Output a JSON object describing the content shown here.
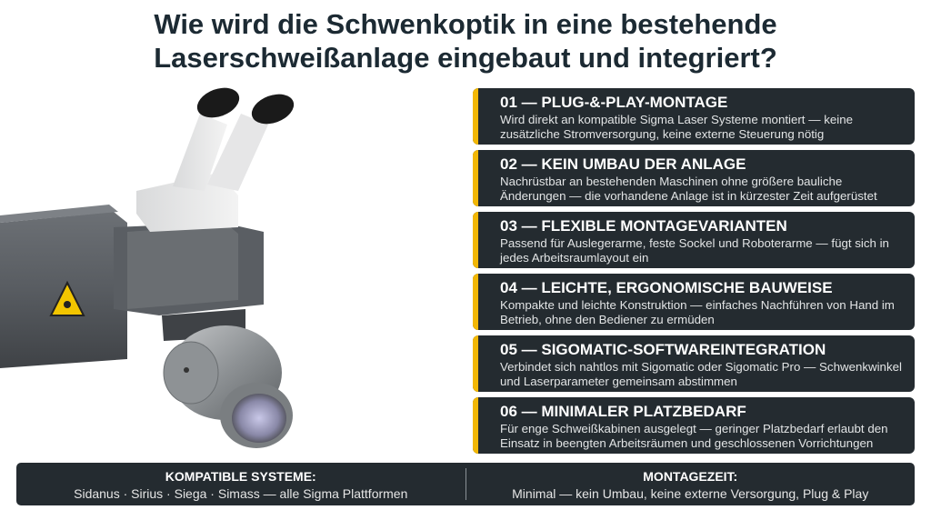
{
  "header": {
    "title_lines": [
      "Wie wird die Schwenkoptik in eine bestehende",
      "Laserschweißanlage eingebaut und integriert?"
    ]
  },
  "items": [
    {
      "heading": "01 — PLUG-&-PLAY-MONTAGE",
      "body": "Wird direkt an kompatible Sigma Laser Systeme montiert — keine zusätzliche Stromversorgung, keine externe Steuerung nötig"
    },
    {
      "heading": "02 — KEIN UMBAU DER ANLAGE",
      "body": "Nachrüstbar an bestehenden Maschinen ohne größere bauliche Änderungen — die vorhandene Anlage ist in kürzester Zeit aufgerüstet"
    },
    {
      "heading": "03 — FLEXIBLE MONTAGEVARIANTEN",
      "body": "Passend für Auslegerarme, feste Sockel und Roboterarme — fügt sich in jedes Arbeitsraumlayout ein"
    },
    {
      "heading": "04 — LEICHTE, ERGONOMISCHE BAUWEISE",
      "body": "Kompakte und leichte Konstruktion — einfaches Nachführen von Hand im Betrieb, ohne den Bediener zu ermüden"
    },
    {
      "heading": "05 — SIGOMATIC-SOFTWAREINTEGRATION",
      "body": "Verbindet sich nahtlos mit Sigomatic oder Sigomatic Pro — Schwenkwinkel und Laserparameter gemeinsam abstimmen"
    },
    {
      "heading": "06 — MINIMALER PLATZBEDARF",
      "body": "Für enge Schweißkabinen ausgelegt — geringer Platzbedarf erlaubt den Einsatz in beengten Arbeitsräumen und geschlossenen Vorrichtungen"
    }
  ],
  "footer": {
    "columns": [
      {
        "label": "KOMPATIBLE SYSTEME:",
        "text": "Sidanus · Sirius · Siega · Simass — alle Sigma Plattformen"
      },
      {
        "label": "MONTAGEZEIT:",
        "text": "Minimal — kein Umbau, keine externe Versorgung, Plug & Play"
      }
    ]
  }
}
